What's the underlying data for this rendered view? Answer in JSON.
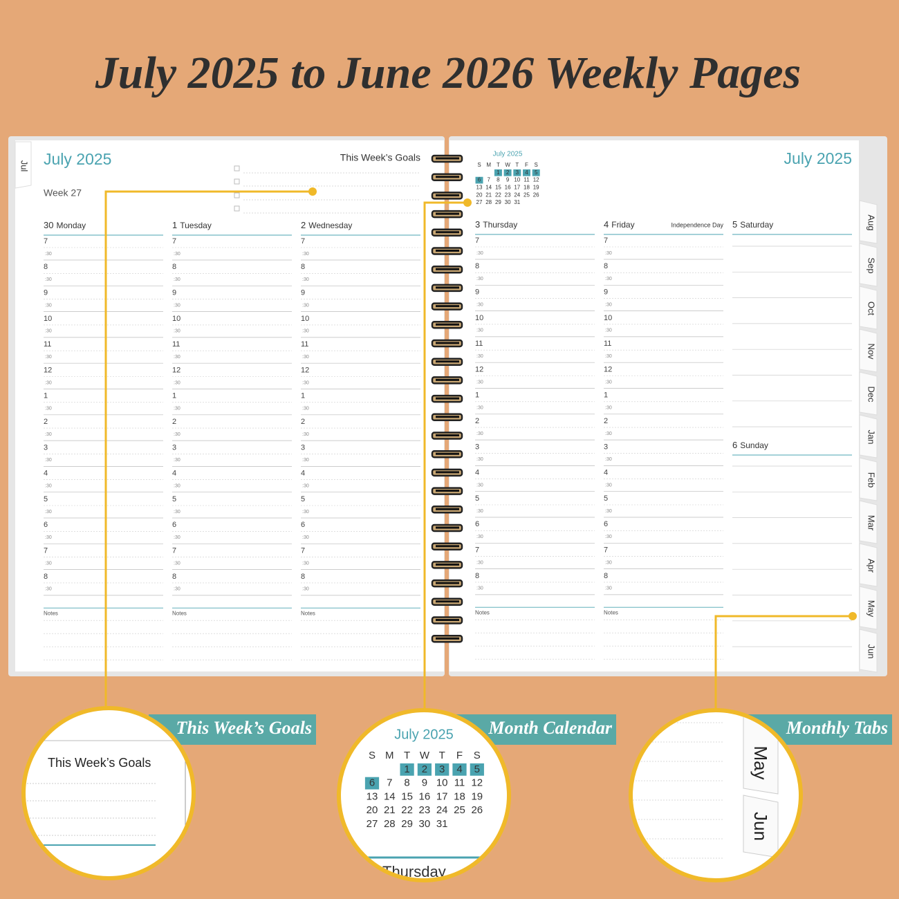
{
  "title": "July 2025 to June 2026 Weekly Pages",
  "left_page": {
    "month": "July 2025",
    "week": "Week 27",
    "goals_title": "This Week’s Goals",
    "days": [
      {
        "date": 30,
        "name": "Monday"
      },
      {
        "date": 1,
        "name": "Tuesday"
      },
      {
        "date": 2,
        "name": "Wednesday"
      }
    ]
  },
  "right_page": {
    "month": "July 2025",
    "mini_calendar": {
      "title": "July 2025",
      "weekdays": [
        "S",
        "M",
        "T",
        "W",
        "T",
        "F",
        "S"
      ],
      "weeks": [
        [
          1,
          2,
          3,
          4,
          5
        ],
        [
          6,
          7,
          8,
          9,
          10,
          11,
          12
        ],
        [
          13,
          14,
          15,
          16,
          17,
          18,
          19
        ],
        [
          20,
          21,
          22,
          23,
          24,
          25,
          26
        ],
        [
          27,
          28,
          29,
          30,
          31
        ]
      ],
      "highlighted": [
        1,
        2,
        3,
        4,
        5,
        6
      ]
    },
    "days": [
      {
        "date": 3,
        "name": "Thursday"
      },
      {
        "date": 4,
        "name": "Friday",
        "holiday": "Independence Day"
      },
      {
        "date": 5,
        "name": "Saturday"
      },
      {
        "date": 6,
        "name": "Sunday"
      }
    ]
  },
  "hours": [
    7,
    8,
    9,
    10,
    11,
    12,
    1,
    2,
    3,
    4,
    5,
    6,
    7,
    8
  ],
  "half_hour": ":30",
  "notes_label": "Notes",
  "tabs": [
    "Jul",
    "Aug",
    "Sep",
    "Oct",
    "Nov",
    "Dec",
    "Jan",
    "Feb",
    "Mar",
    "Apr",
    "May",
    "Jun"
  ],
  "callouts": [
    {
      "label": "This Week’s Goals"
    },
    {
      "label": "Month Calendar",
      "zoom_text": "Thursday"
    },
    {
      "label": "Monthly Tabs"
    }
  ]
}
